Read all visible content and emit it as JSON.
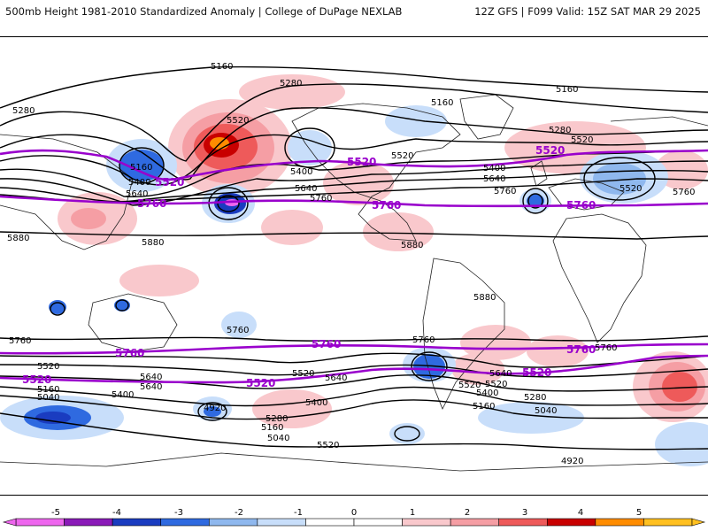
{
  "header": {
    "left": "500mb Height 1981-2010 Standardized Anomaly | College of DuPage NEXLAB",
    "right": "12Z GFS | F099 Valid: 15Z SAT MAR 29 2025"
  },
  "colorbar": {
    "ticks": [
      "-5",
      "-4",
      "-3",
      "-2",
      "-1",
      "0",
      "1",
      "2",
      "3",
      "4",
      "5"
    ],
    "colors": [
      "#ee66ee",
      "#8a1ab8",
      "#1a3cc0",
      "#2f6ae0",
      "#8fb8ee",
      "#c8defa",
      "#ffffff",
      "#ffffff",
      "#f9c8cc",
      "#f59ea4",
      "#ee5a5a",
      "#c80000",
      "#ff8c00",
      "#ffc020"
    ]
  },
  "contour_labels": {
    "black": [
      "5160",
      "5280",
      "5280",
      "5520",
      "5160",
      "5280",
      "5520",
      "5520",
      "5400",
      "5640",
      "5760",
      "5160",
      "5400",
      "5640",
      "5760",
      "5880",
      "5880",
      "5400",
      "5640",
      "5160",
      "5520",
      "5280",
      "5880",
      "5880",
      "5760",
      "5760",
      "5760",
      "5520",
      "5520",
      "5640",
      "5400",
      "5160",
      "5040",
      "5640",
      "5520",
      "5640",
      "5400",
      "4920",
      "5280",
      "5160",
      "5040",
      "5760",
      "5520",
      "5400",
      "5280",
      "5160",
      "5040",
      "4920",
      "5520",
      "5640",
      "5760"
    ],
    "purple": [
      "5520",
      "5760",
      "5520",
      "5760",
      "5520",
      "5760",
      "5760",
      "5520",
      "5760",
      "5520",
      "5520",
      "5760",
      "5520"
    ]
  },
  "colors": {
    "contour": "#000000",
    "highlight_contour": "#9900cc",
    "coast": "#222222"
  }
}
